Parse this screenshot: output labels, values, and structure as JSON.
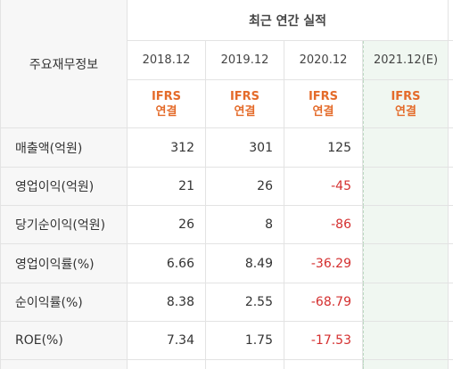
{
  "header": {
    "section_title": "최근 연간 실적",
    "main_label": "주요재무정보",
    "years": [
      "2018.12",
      "2019.12",
      "2020.12",
      "2021.12(E)"
    ],
    "ifrs": [
      "IFRS",
      "IFRS",
      "IFRS",
      "IFRS"
    ],
    "basis": [
      "연결",
      "연결",
      "연결",
      "연결"
    ]
  },
  "rows": [
    {
      "label": "매출액(억원)",
      "values": [
        "312",
        "301",
        "125",
        ""
      ],
      "negative": [
        false,
        false,
        false,
        false
      ]
    },
    {
      "label": "영업이익(억원)",
      "values": [
        "21",
        "26",
        "-45",
        ""
      ],
      "negative": [
        false,
        false,
        true,
        false
      ]
    },
    {
      "label": "당기순이익(억원)",
      "values": [
        "26",
        "8",
        "-86",
        ""
      ],
      "negative": [
        false,
        false,
        true,
        false
      ]
    },
    {
      "label": "영업이익률(%)",
      "values": [
        "6.66",
        "8.49",
        "-36.29",
        ""
      ],
      "negative": [
        false,
        false,
        true,
        false
      ]
    },
    {
      "label": "순이익률(%)",
      "values": [
        "8.38",
        "2.55",
        "-68.79",
        ""
      ],
      "negative": [
        false,
        false,
        true,
        false
      ]
    },
    {
      "label": "ROE(%)",
      "values": [
        "7.34",
        "1.75",
        "-17.53",
        ""
      ],
      "negative": [
        false,
        false,
        true,
        false
      ]
    }
  ],
  "colors": {
    "ifrs_orange": "#e46b2a",
    "negative_red": "#d42f2f",
    "estimate_bg": "#f0f7f1",
    "label_bg": "#f7f7f7"
  }
}
